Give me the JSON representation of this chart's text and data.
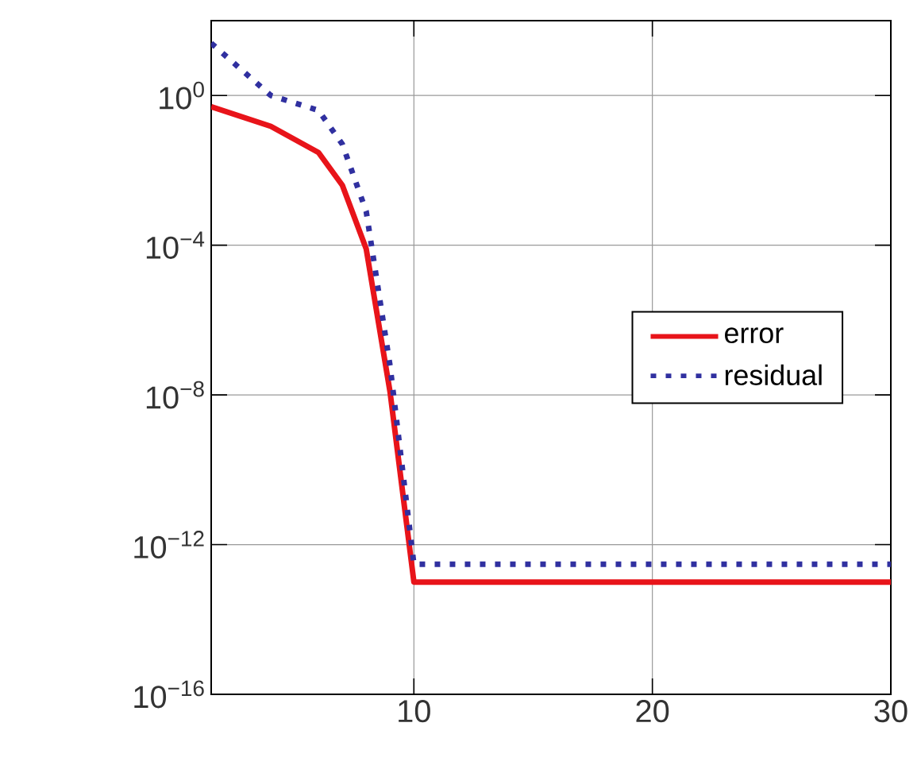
{
  "chart_data": {
    "type": "line",
    "x": [
      1.5,
      4,
      6,
      7,
      8,
      9,
      10,
      30
    ],
    "series": [
      {
        "name": "error",
        "color": "#e8141a",
        "line_style": "solid",
        "values": [
          0.5,
          0.15,
          0.03,
          0.004,
          8e-05,
          1.2e-08,
          1e-13,
          1e-13
        ]
      },
      {
        "name": "residual",
        "color": "#3030a0",
        "line_style": "dotted",
        "values": [
          25,
          1,
          0.4,
          0.05,
          0.0008,
          6e-08,
          3e-13,
          3e-13
        ]
      }
    ],
    "log": "y",
    "grid": true,
    "legend": "right",
    "xlim": [
      1.5,
      30
    ],
    "xticks": [
      10,
      20,
      30
    ],
    "ylim": [
      1e-16,
      100
    ],
    "yticks": [
      {
        "value": 1,
        "label": "10$^{0}$"
      },
      {
        "value": 0.0001,
        "label": "10$^{−4}$"
      },
      {
        "value": 1e-08,
        "label": "10$^{−8}$"
      },
      {
        "value": 1e-12,
        "label": "10$^{−12}$"
      },
      {
        "value": 1e-16,
        "label": "10$^{−16}$"
      }
    ]
  }
}
